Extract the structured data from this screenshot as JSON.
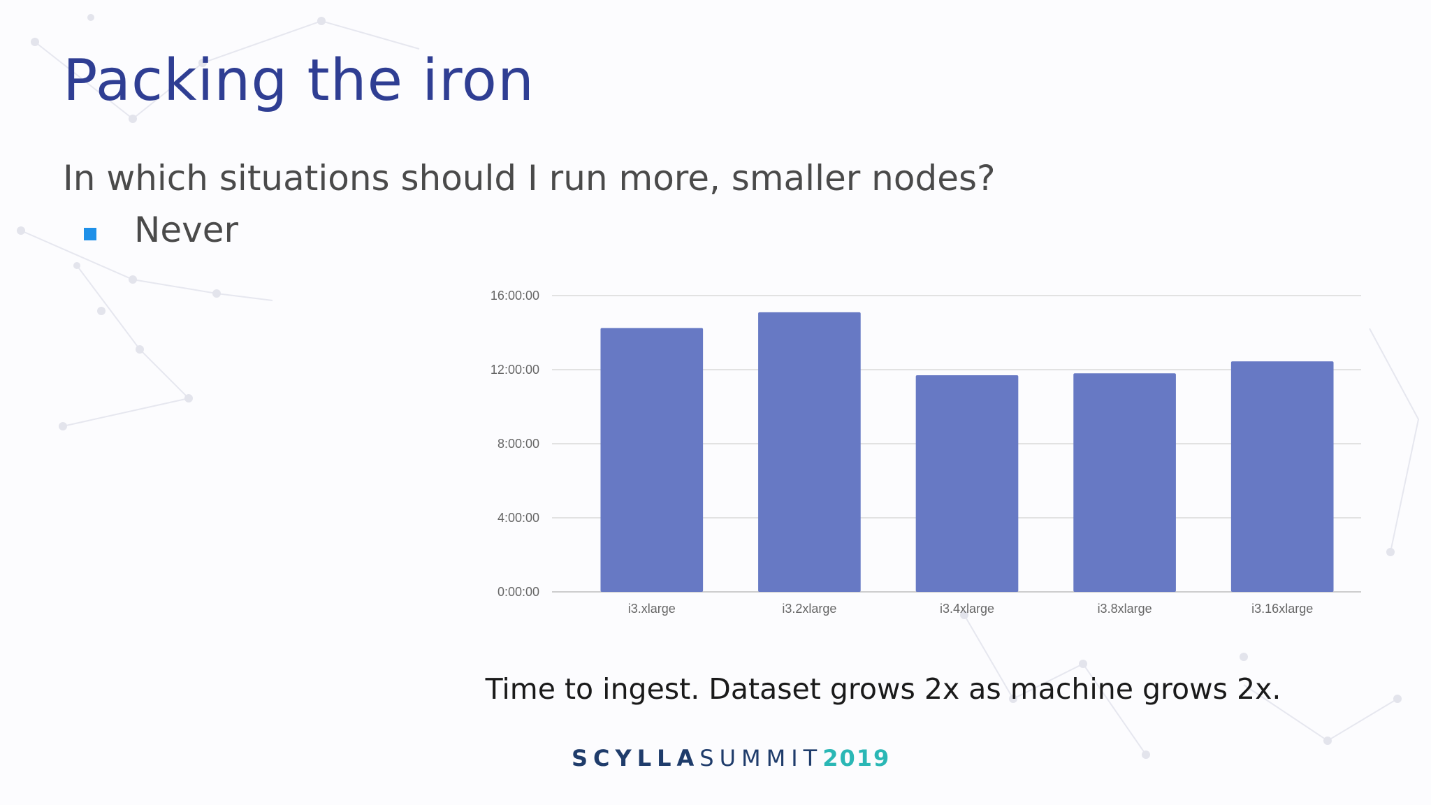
{
  "slide": {
    "title": "Packing the iron",
    "question": "In which situations should I run more, smaller nodes?",
    "bullets": [
      "Never"
    ],
    "caption": "Time to ingest. Dataset grows 2x as machine grows 2x.",
    "brand": {
      "part1": "SCYLLA",
      "part2": "SUMMIT",
      "part3": "2019"
    }
  },
  "colors": {
    "title": "#2f3e93",
    "bullet_marker": "#1e90e8",
    "bar": "#6779c4",
    "gridline": "#d9d9d9",
    "brand_dark": "#1f3c6b",
    "brand_accent": "#2ab7b5"
  },
  "chart_data": {
    "type": "bar",
    "categories": [
      "i3.xlarge",
      "i3.2xlarge",
      "i3.4xlarge",
      "i3.8xlarge",
      "i3.16xlarge"
    ],
    "values_hours": [
      14.25,
      15.1,
      11.7,
      11.8,
      12.45
    ],
    "ylim_hours": [
      0,
      16
    ],
    "yticks": [
      "0:00:00",
      "4:00:00",
      "8:00:00",
      "12:00:00",
      "16:00:00"
    ],
    "grid": true,
    "title": "",
    "xlabel": "",
    "ylabel": ""
  }
}
